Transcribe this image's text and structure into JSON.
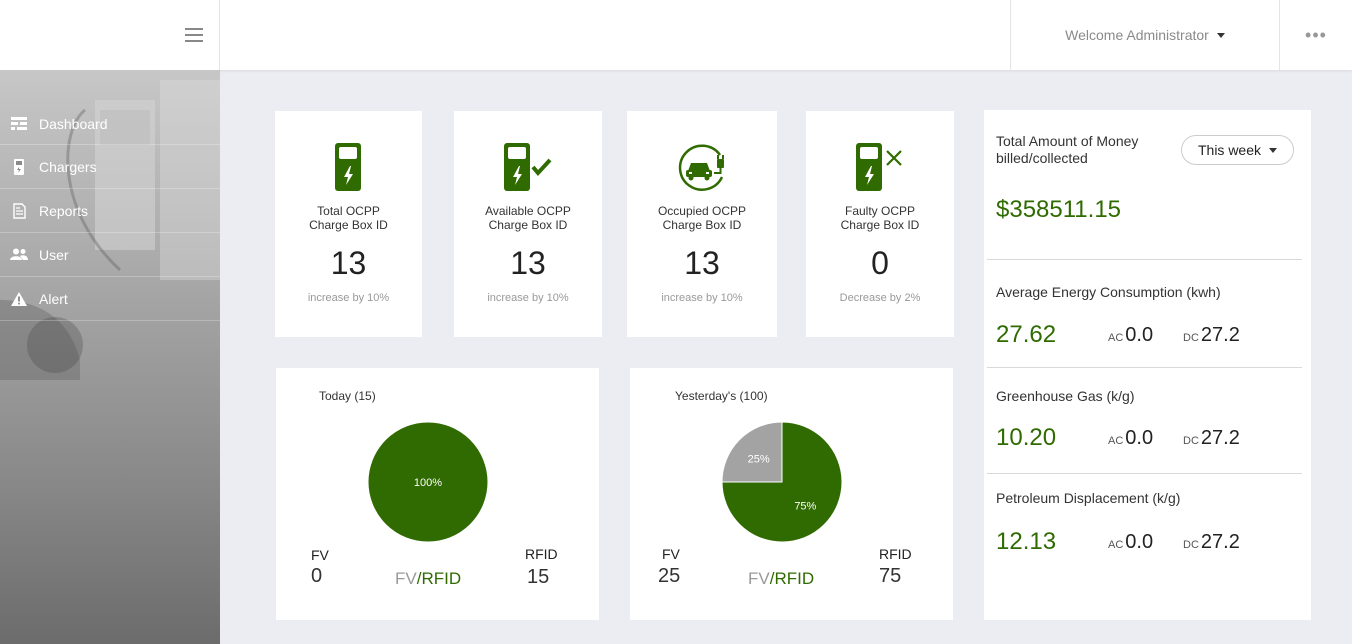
{
  "header": {
    "welcome": "Welcome Administrator",
    "more": "•••"
  },
  "sidebar": {
    "items": [
      {
        "label": "Dashboard",
        "icon": "dashboard-icon"
      },
      {
        "label": "Chargers",
        "icon": "charger-icon"
      },
      {
        "label": "Reports",
        "icon": "report-icon"
      },
      {
        "label": "User",
        "icon": "users-icon"
      },
      {
        "label": "Alert",
        "icon": "warning-icon"
      }
    ]
  },
  "stats": [
    {
      "line1": "Total OCPP",
      "line2": "Charge Box ID",
      "value": "13",
      "change": "increase by 10%"
    },
    {
      "line1": "Available OCPP",
      "line2": "Charge Box ID",
      "value": "13",
      "change": "increase by 10%"
    },
    {
      "line1": "Occupied OCPP",
      "line2": "Charge Box ID",
      "value": "13",
      "change": "increase by 10%"
    },
    {
      "line1": "Faulty OCPP",
      "line2": "Charge Box ID",
      "value": "0",
      "change": "Decrease by 2%"
    }
  ],
  "pies": {
    "today": {
      "title": "Today  (15)",
      "fv_label": "FV",
      "fv_value": "0",
      "rfid_label": "RFID",
      "rfid_value": "15",
      "fv_text": "FV",
      "slash": "/",
      "rfid_text": "RFID"
    },
    "yesterday": {
      "title": "Yesterday's (100)",
      "fv_label": "FV",
      "fv_value": "25",
      "rfid_label": "RFID",
      "rfid_value": "75",
      "fv_text": "FV",
      "slash": "/",
      "rfid_text": "RFID"
    }
  },
  "chart_data": [
    {
      "type": "pie",
      "title": "Today  (15)",
      "labels": [
        "FV",
        "RFID"
      ],
      "values": [
        0,
        15
      ],
      "slice_labels": [
        "",
        "100%"
      ],
      "colors": [
        "#a3a3a3",
        "#2f6b00"
      ]
    },
    {
      "type": "pie",
      "title": "Yesterday's (100)",
      "labels": [
        "FV",
        "RFID"
      ],
      "values": [
        25,
        75
      ],
      "slice_labels": [
        "25%",
        "75%"
      ],
      "colors": [
        "#a3a3a3",
        "#2f6b00"
      ]
    }
  ],
  "right": {
    "money_title_1": "Total Amount of Money",
    "money_title_2": "billed/collected",
    "period": "This week",
    "money_value": "$358511.15",
    "sections": [
      {
        "title": "Average Energy Consumption (kwh)",
        "value": "27.62",
        "ac_label": "AC",
        "ac": "0.0",
        "dc_label": "DC",
        "dc": "27.2"
      },
      {
        "title": "Greenhouse Gas (k/g)",
        "value": "10.20",
        "ac_label": "AC",
        "ac": "0.0",
        "dc_label": "DC",
        "dc": "27.2"
      },
      {
        "title": "Petroleum Displacement (k/g)",
        "value": "12.13",
        "ac_label": "AC",
        "ac": "0.0",
        "dc_label": "DC",
        "dc": "27.2"
      }
    ]
  },
  "colors": {
    "accent": "#2f6b00",
    "muted": "#999999",
    "gray_slice": "#a3a3a3"
  }
}
